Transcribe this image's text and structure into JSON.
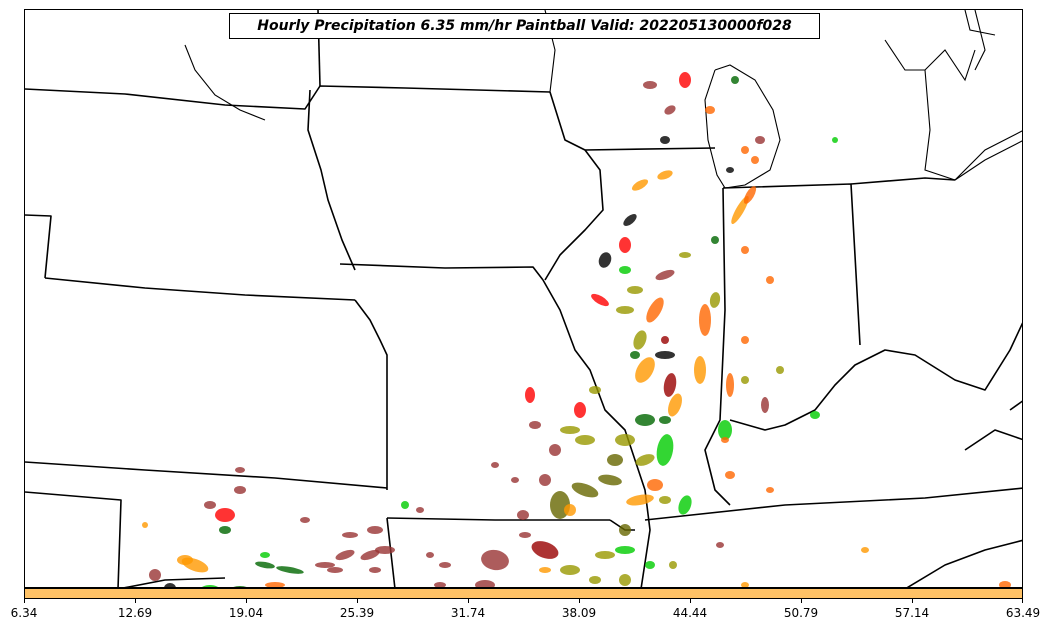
{
  "title": "Hourly Precipitation 6.35 mm/hr Paintball Valid: 202205130000f028",
  "colorbar": {
    "color": "#ffc266",
    "ticks": [
      "6.34",
      "12.69",
      "19.04",
      "25.39",
      "31.74",
      "38.09",
      "44.44",
      "50.79",
      "57.14",
      "63.49"
    ]
  },
  "colors": {
    "map_lines": "#000000",
    "paintball_palette": [
      "#000000",
      "#00cc00",
      "#006600",
      "#999900",
      "#666600",
      "#ff9900",
      "#ff6600",
      "#ff0000",
      "#990000",
      "#993333"
    ]
  }
}
